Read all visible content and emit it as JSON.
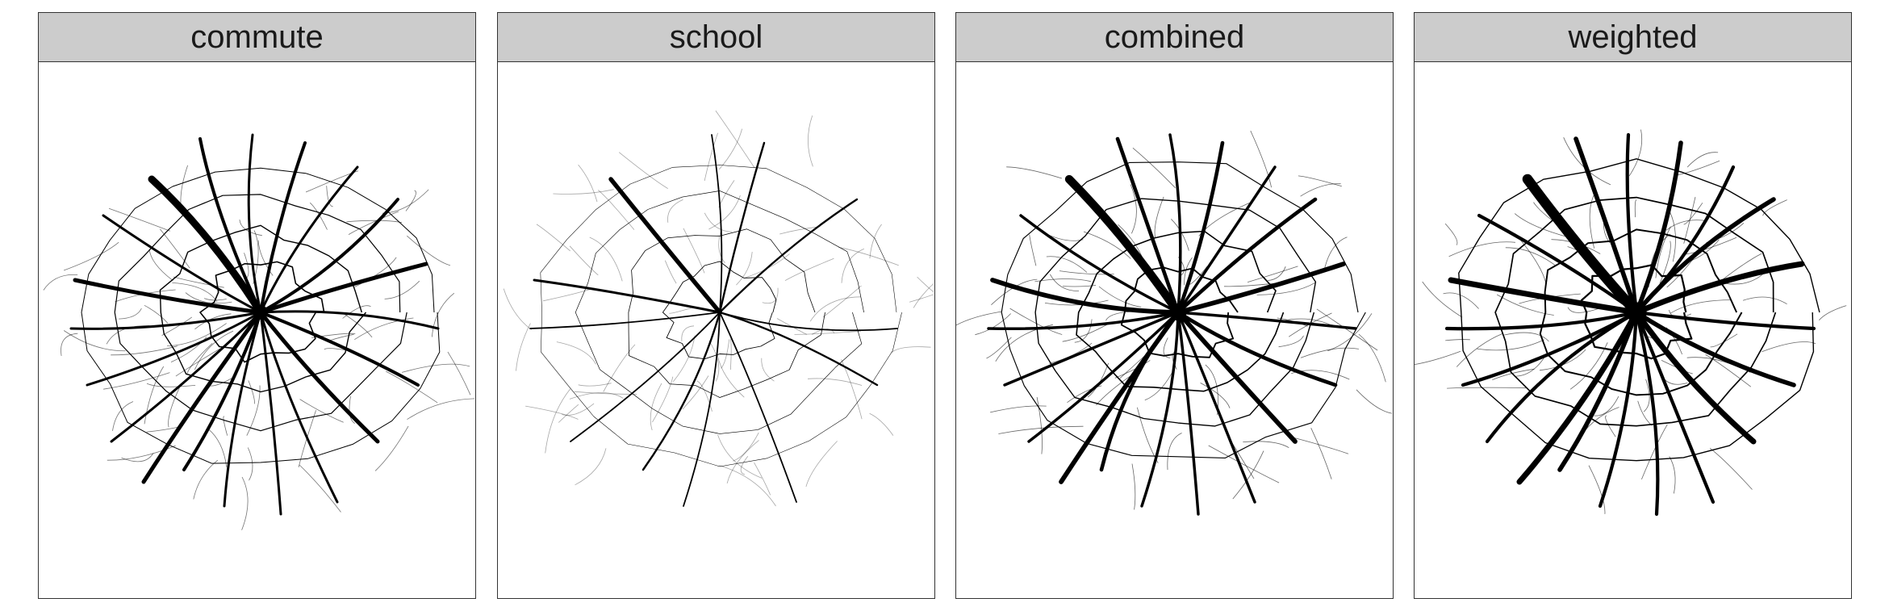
{
  "panels": [
    {
      "label": "commute",
      "style": {
        "color": "#000000",
        "width_scale": 1.0,
        "faint_opacity": 0.55
      }
    },
    {
      "label": "school",
      "style": {
        "color": "#000000",
        "width_scale": 0.55,
        "faint_opacity": 0.35
      }
    },
    {
      "label": "combined",
      "style": {
        "color": "#000000",
        "width_scale": 1.15,
        "faint_opacity": 0.6
      }
    },
    {
      "label": "weighted",
      "style": {
        "color": "#000000",
        "width_scale": 1.4,
        "faint_opacity": 0.6
      }
    }
  ]
}
